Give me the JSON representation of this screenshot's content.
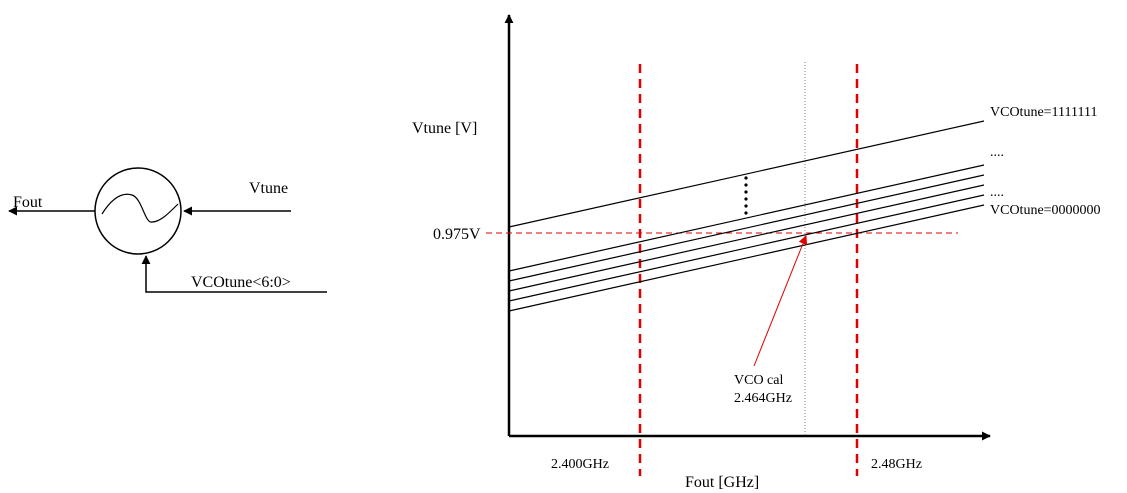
{
  "vco_block": {
    "output_label": "Fout",
    "input_label": "Vtune",
    "control_label": "VCOtune<6:0>"
  },
  "plot": {
    "y_axis_label": "Vtune [V]",
    "x_axis_label": "Fout [GHz]",
    "ref_voltage_label": "0.975V",
    "band_low_label": "2.400GHz",
    "band_high_label": "2.48GHz",
    "curve_top_label": "VCOtune=1111111",
    "curve_bottom_label": "VCOtune=0000000",
    "ellipsis_top": "....",
    "ellipsis_bottom": "....",
    "cal_label_line1": "VCO cal",
    "cal_label_line2": "2.464GHz"
  },
  "colors": {
    "ink": "#000000",
    "band_marker": "#e00000",
    "reference": "#e00000",
    "cal_line": "#808080"
  }
}
